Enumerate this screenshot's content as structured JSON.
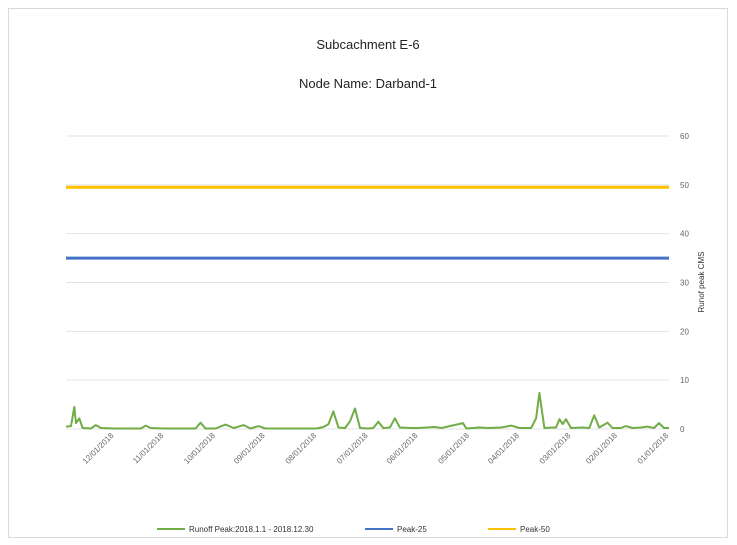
{
  "chart_data": {
    "type": "line",
    "title": "Subcachment E-6",
    "subtitle": "Node Name: Darband-1",
    "ylabel": "Runof peak CMS",
    "xlabel": "",
    "ylim": [
      0,
      60
    ],
    "yticks": [
      "60",
      "50",
      "40",
      "30",
      "20",
      "10",
      "0"
    ],
    "x_ticks": [
      "12/01/2018",
      "11/01/2018",
      "10/01/2018",
      "09/01/2018",
      "08/01/2018",
      "07/01/2018",
      "06/01/2018",
      "05/01/2018",
      "04/01/2018",
      "03/01/2018",
      "02/01/2018",
      "01/01/2018"
    ],
    "x_axis_direction": "reversed",
    "grid": true,
    "legend_position": "bottom",
    "series": [
      {
        "name": "Runoff Peak:2018.1.1 - 2018.12.30",
        "color": "#70ad47",
        "points": [
          [
            "2018-12-30",
            0.5
          ],
          [
            "2018-12-27",
            0.6
          ],
          [
            "2018-12-25",
            4.5
          ],
          [
            "2018-12-24",
            1.2
          ],
          [
            "2018-12-22",
            2.2
          ],
          [
            "2018-12-20",
            0.2
          ],
          [
            "2018-12-15",
            0.1
          ],
          [
            "2018-12-12",
            0.8
          ],
          [
            "2018-12-09",
            0.2
          ],
          [
            "2018-12-01",
            0.1
          ],
          [
            "2018-11-20",
            0.1
          ],
          [
            "2018-11-15",
            0.1
          ],
          [
            "2018-11-12",
            0.7
          ],
          [
            "2018-11-09",
            0.2
          ],
          [
            "2018-11-01",
            0.1
          ],
          [
            "2018-10-20",
            0.1
          ],
          [
            "2018-10-13",
            0.1
          ],
          [
            "2018-10-10",
            1.3
          ],
          [
            "2018-10-07",
            0.1
          ],
          [
            "2018-10-01",
            0.1
          ],
          [
            "2018-09-25",
            0.9
          ],
          [
            "2018-09-20",
            0.2
          ],
          [
            "2018-09-14",
            0.8
          ],
          [
            "2018-09-10",
            0.1
          ],
          [
            "2018-09-05",
            0.6
          ],
          [
            "2018-09-01",
            0.1
          ],
          [
            "2018-08-15",
            0.1
          ],
          [
            "2018-08-01",
            0.1
          ],
          [
            "2018-07-28",
            0.4
          ],
          [
            "2018-07-25",
            1.0
          ],
          [
            "2018-07-22",
            3.6
          ],
          [
            "2018-07-19",
            0.3
          ],
          [
            "2018-07-15",
            0.2
          ],
          [
            "2018-07-12",
            1.6
          ],
          [
            "2018-07-09",
            4.2
          ],
          [
            "2018-07-06",
            0.2
          ],
          [
            "2018-07-01",
            0.1
          ],
          [
            "2018-06-28",
            0.2
          ],
          [
            "2018-06-25",
            1.5
          ],
          [
            "2018-06-22",
            0.2
          ],
          [
            "2018-06-18",
            0.3
          ],
          [
            "2018-06-15",
            2.2
          ],
          [
            "2018-06-12",
            0.3
          ],
          [
            "2018-06-05",
            0.2
          ],
          [
            "2018-06-01",
            0.2
          ],
          [
            "2018-05-22",
            0.4
          ],
          [
            "2018-05-18",
            0.2
          ],
          [
            "2018-05-05",
            1.2
          ],
          [
            "2018-05-03",
            0.1
          ],
          [
            "2018-04-25",
            0.3
          ],
          [
            "2018-04-20",
            0.2
          ],
          [
            "2018-04-12",
            0.3
          ],
          [
            "2018-04-06",
            0.7
          ],
          [
            "2018-04-01",
            0.2
          ],
          [
            "2018-03-25",
            0.2
          ],
          [
            "2018-03-22",
            2.2
          ],
          [
            "2018-03-20",
            7.4
          ],
          [
            "2018-03-17",
            0.2
          ],
          [
            "2018-03-12",
            0.3
          ],
          [
            "2018-03-10",
            0.3
          ],
          [
            "2018-03-08",
            2.0
          ],
          [
            "2018-03-06",
            1.0
          ],
          [
            "2018-03-04",
            2.0
          ],
          [
            "2018-03-01",
            0.2
          ],
          [
            "2018-02-22",
            0.3
          ],
          [
            "2018-02-18",
            0.2
          ],
          [
            "2018-02-15",
            2.8
          ],
          [
            "2018-02-12",
            0.3
          ],
          [
            "2018-02-07",
            1.3
          ],
          [
            "2018-02-04",
            0.2
          ],
          [
            "2018-01-30",
            0.2
          ],
          [
            "2018-01-27",
            0.6
          ],
          [
            "2018-01-23",
            0.2
          ],
          [
            "2018-01-18",
            0.3
          ],
          [
            "2018-01-14",
            0.5
          ],
          [
            "2018-01-10",
            0.2
          ],
          [
            "2018-01-07",
            1.2
          ],
          [
            "2018-01-04",
            0.2
          ],
          [
            "2018-01-01",
            0.2
          ]
        ]
      },
      {
        "name": "Peak-25",
        "color": "#4472c4",
        "points": [
          [
            "2018-12-30",
            35
          ],
          [
            "2018-01-01",
            35
          ]
        ]
      },
      {
        "name": "Peak-50",
        "color": "#ffc000",
        "points": [
          [
            "2018-12-30",
            49.5
          ],
          [
            "2018-01-01",
            49.5
          ]
        ]
      }
    ]
  }
}
